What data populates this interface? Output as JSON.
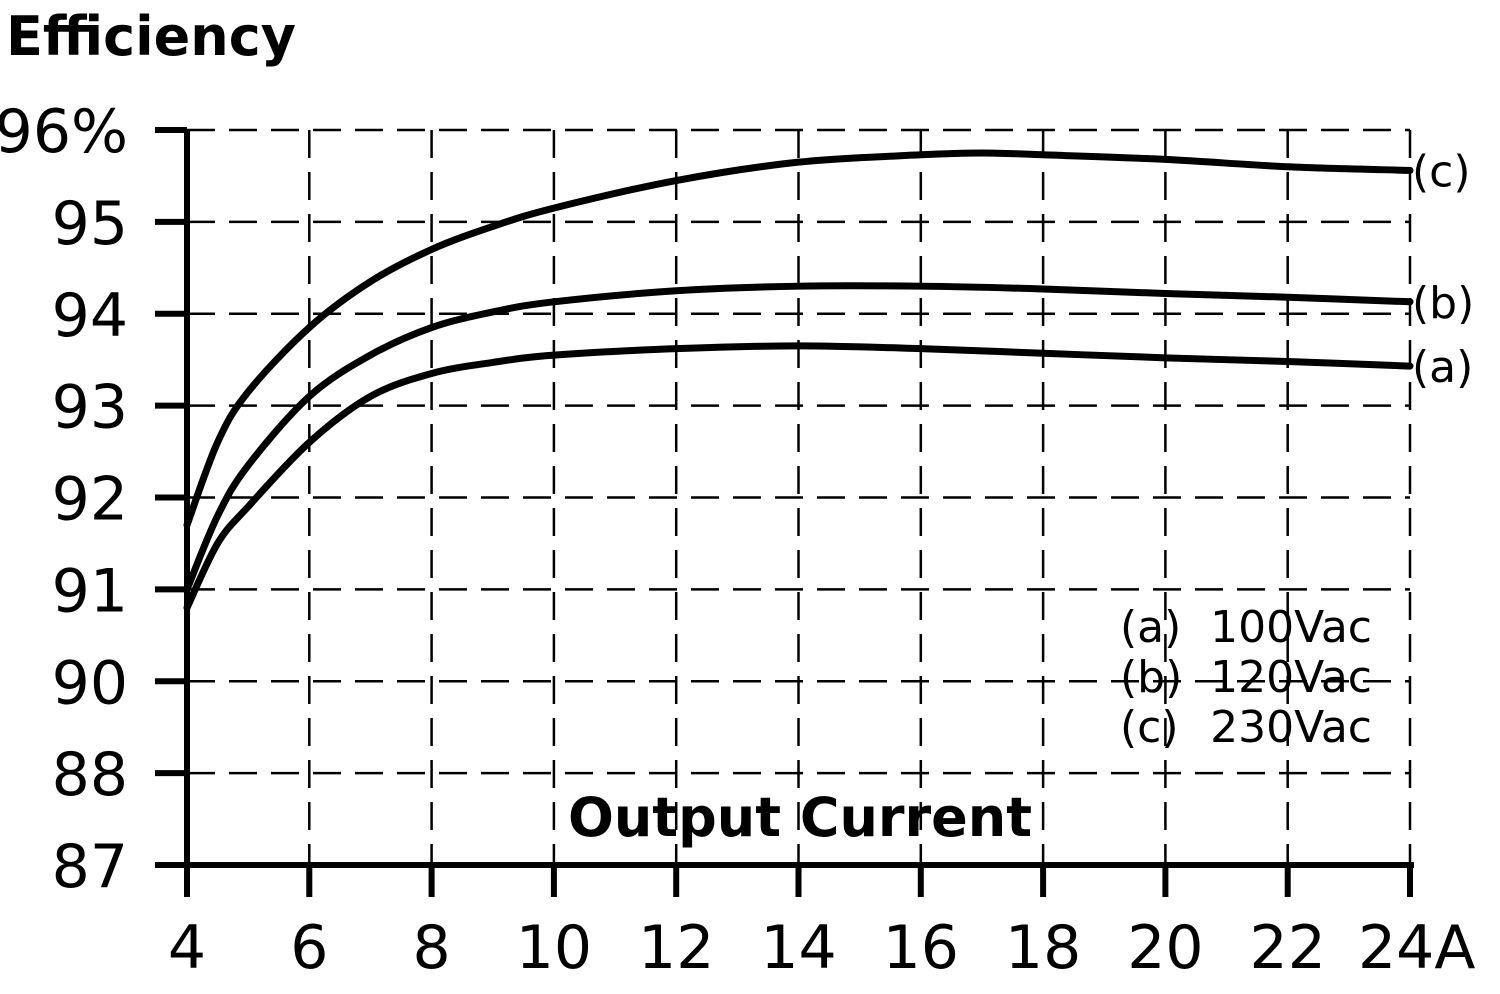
{
  "chart_data": {
    "type": "line",
    "title": "Efficiency",
    "xlabel": "Output Current",
    "ylabel": "",
    "x_unit": "A",
    "y_unit": "%",
    "x_ticks": [
      "4",
      "6",
      "8",
      "10",
      "12",
      "14",
      "16",
      "18",
      "20",
      "22",
      "24A"
    ],
    "y_ticks": [
      "87",
      "88",
      "90",
      "91",
      "92",
      "93",
      "94",
      "95",
      "96%"
    ],
    "xlim": [
      4,
      24
    ],
    "y_scale_note": "non-uniform: bottom ticks 87, 88, 90 are evenly spaced with 91..96",
    "grid": true,
    "legend": {
      "placement": "bottom-right",
      "entries": [
        {
          "key": "(a)",
          "label": "100Vac"
        },
        {
          "key": "(b)",
          "label": "120Vac"
        },
        {
          "key": "(c)",
          "label": "230Vac"
        }
      ]
    },
    "series": [
      {
        "name": "(a)",
        "x": [
          4,
          4.5,
          5,
          6,
          7,
          8,
          9,
          10,
          12,
          14,
          16,
          18,
          20,
          22,
          24
        ],
        "y": [
          90.8,
          91.5,
          91.9,
          92.6,
          93.1,
          93.35,
          93.47,
          93.55,
          93.62,
          93.65,
          93.62,
          93.57,
          93.52,
          93.48,
          93.43
        ]
      },
      {
        "name": "(b)",
        "x": [
          4,
          4.5,
          5,
          6,
          7,
          8,
          9,
          10,
          12,
          14,
          16,
          18,
          20,
          22,
          24
        ],
        "y": [
          91.0,
          91.8,
          92.35,
          93.1,
          93.55,
          93.85,
          94.02,
          94.13,
          94.25,
          94.3,
          94.3,
          94.27,
          94.22,
          94.18,
          94.13
        ]
      },
      {
        "name": "(c)",
        "x": [
          4,
          4.5,
          5,
          6,
          7,
          8,
          9,
          10,
          12,
          14,
          16,
          17,
          18,
          20,
          22,
          24
        ],
        "y": [
          91.7,
          92.6,
          93.15,
          93.85,
          94.35,
          94.7,
          94.95,
          95.15,
          95.45,
          95.65,
          95.73,
          95.75,
          95.73,
          95.68,
          95.6,
          95.56
        ]
      }
    ]
  }
}
